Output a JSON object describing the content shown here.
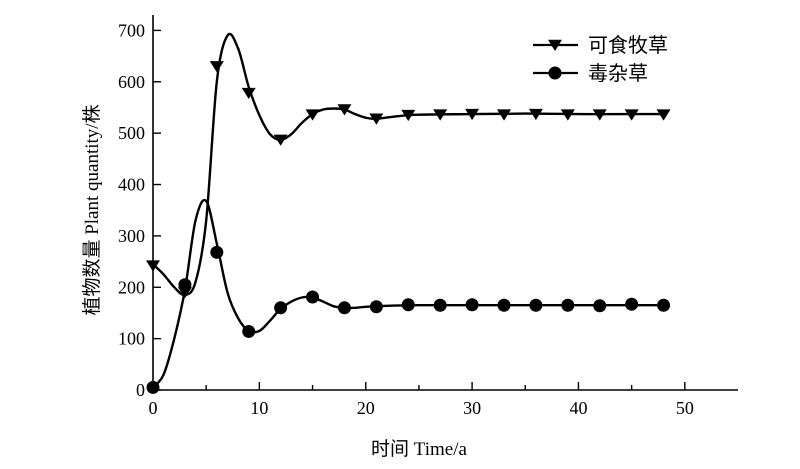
{
  "chart_data": {
    "type": "line",
    "title": "",
    "xlabel": "时间 Time/a",
    "ylabel": "植物数量 Plant quantity/株",
    "xlim": [
      0,
      55
    ],
    "ylim": [
      0,
      730
    ],
    "xticks": [
      0,
      10,
      20,
      30,
      40,
      50
    ],
    "yticks": [
      0,
      100,
      200,
      300,
      400,
      500,
      600,
      700
    ],
    "grid": false,
    "legend_position": "top-right",
    "series": [
      {
        "name": "可食牧草",
        "marker": "triangle-down",
        "color": "#000000",
        "curve": [
          [
            0,
            245
          ],
          [
            1,
            225
          ],
          [
            2,
            200
          ],
          [
            3,
            185
          ],
          [
            4,
            210
          ],
          [
            5,
            330
          ],
          [
            6,
            600
          ],
          [
            7,
            690
          ],
          [
            8,
            665
          ],
          [
            9,
            590
          ],
          [
            10,
            535
          ],
          [
            11,
            498
          ],
          [
            12,
            487
          ],
          [
            13,
            498
          ],
          [
            14,
            520
          ],
          [
            15,
            537
          ],
          [
            16,
            546
          ],
          [
            17,
            548
          ],
          [
            18,
            546
          ],
          [
            19,
            537
          ],
          [
            20,
            530
          ],
          [
            21,
            528
          ],
          [
            23,
            533
          ],
          [
            25,
            536
          ],
          [
            30,
            537
          ],
          [
            35,
            538
          ],
          [
            40,
            537
          ],
          [
            45,
            537
          ],
          [
            48,
            537
          ]
        ],
        "markers": [
          [
            0,
            242
          ],
          [
            3,
            190
          ],
          [
            6,
            630
          ],
          [
            9,
            578
          ],
          [
            12,
            487
          ],
          [
            15,
            536
          ],
          [
            18,
            546
          ],
          [
            21,
            528
          ],
          [
            24,
            535
          ],
          [
            27,
            536
          ],
          [
            30,
            537
          ],
          [
            33,
            536
          ],
          [
            36,
            537
          ],
          [
            39,
            536
          ],
          [
            42,
            536
          ],
          [
            45,
            536
          ],
          [
            48,
            536
          ]
        ]
      },
      {
        "name": "毒杂草",
        "marker": "circle",
        "color": "#000000",
        "curve": [
          [
            0,
            5
          ],
          [
            1,
            30
          ],
          [
            2,
            100
          ],
          [
            3,
            195
          ],
          [
            4,
            330
          ],
          [
            5,
            368
          ],
          [
            6,
            285
          ],
          [
            7,
            190
          ],
          [
            8,
            140
          ],
          [
            9,
            115
          ],
          [
            10,
            115
          ],
          [
            11,
            135
          ],
          [
            12,
            158
          ],
          [
            13,
            172
          ],
          [
            14,
            180
          ],
          [
            15,
            180
          ],
          [
            16,
            172
          ],
          [
            17,
            163
          ],
          [
            18,
            160
          ],
          [
            19,
            160
          ],
          [
            20,
            162
          ],
          [
            22,
            164
          ],
          [
            25,
            165
          ],
          [
            30,
            165
          ],
          [
            35,
            165
          ],
          [
            40,
            165
          ],
          [
            45,
            165
          ],
          [
            48,
            165
          ]
        ],
        "markers": [
          [
            0,
            5
          ],
          [
            3,
            205
          ],
          [
            6,
            268
          ],
          [
            9,
            114
          ],
          [
            12,
            160
          ],
          [
            15,
            181
          ],
          [
            18,
            160
          ],
          [
            21,
            162
          ],
          [
            24,
            166
          ],
          [
            27,
            165
          ],
          [
            30,
            166
          ],
          [
            33,
            165
          ],
          [
            36,
            165
          ],
          [
            39,
            165
          ],
          [
            42,
            164
          ],
          [
            45,
            167
          ],
          [
            48,
            165
          ]
        ]
      }
    ]
  }
}
